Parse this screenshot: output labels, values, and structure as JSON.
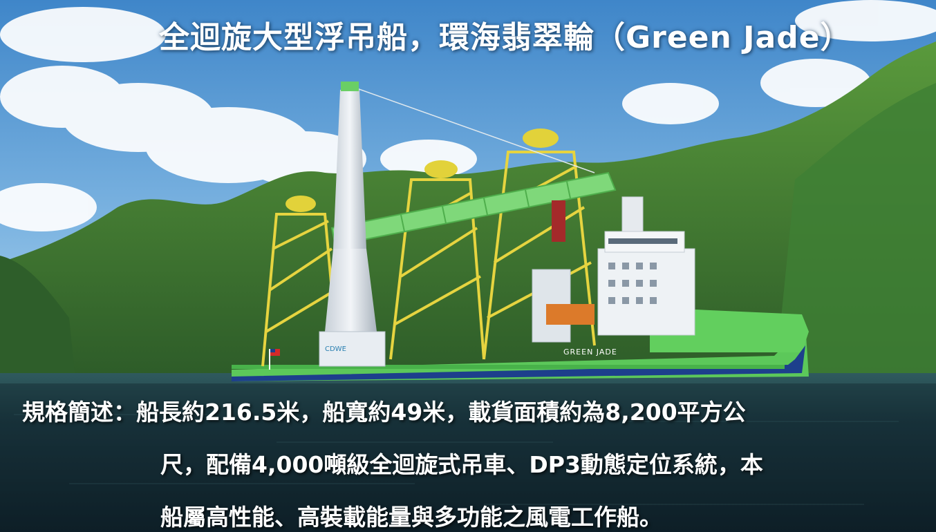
{
  "title": "全迴旋大型浮吊船，環海翡翠輪（Green Jade）",
  "caption": {
    "line1": "規格簡述：船長約216.5米，船寬約49米，載貨面積約為8,200平方公",
    "line2": "尺，配備4,000噸級全迴旋式吊車、DP3動態定位系統，本",
    "line3": "船屬高性能、高裝載能量與多功能之風電工作船。"
  },
  "ship": {
    "hull_name": "GREEN JADE",
    "crane_logo": "CDWE"
  },
  "colors": {
    "sky": "#5b9fd6",
    "hull_green": "#5cc85a",
    "hull_blue": "#1d3f8c",
    "jacket_yellow": "#e6d440",
    "boom_green": "#7fd87a",
    "mountain": "#3d7a32",
    "sea": "#1c3a44"
  }
}
